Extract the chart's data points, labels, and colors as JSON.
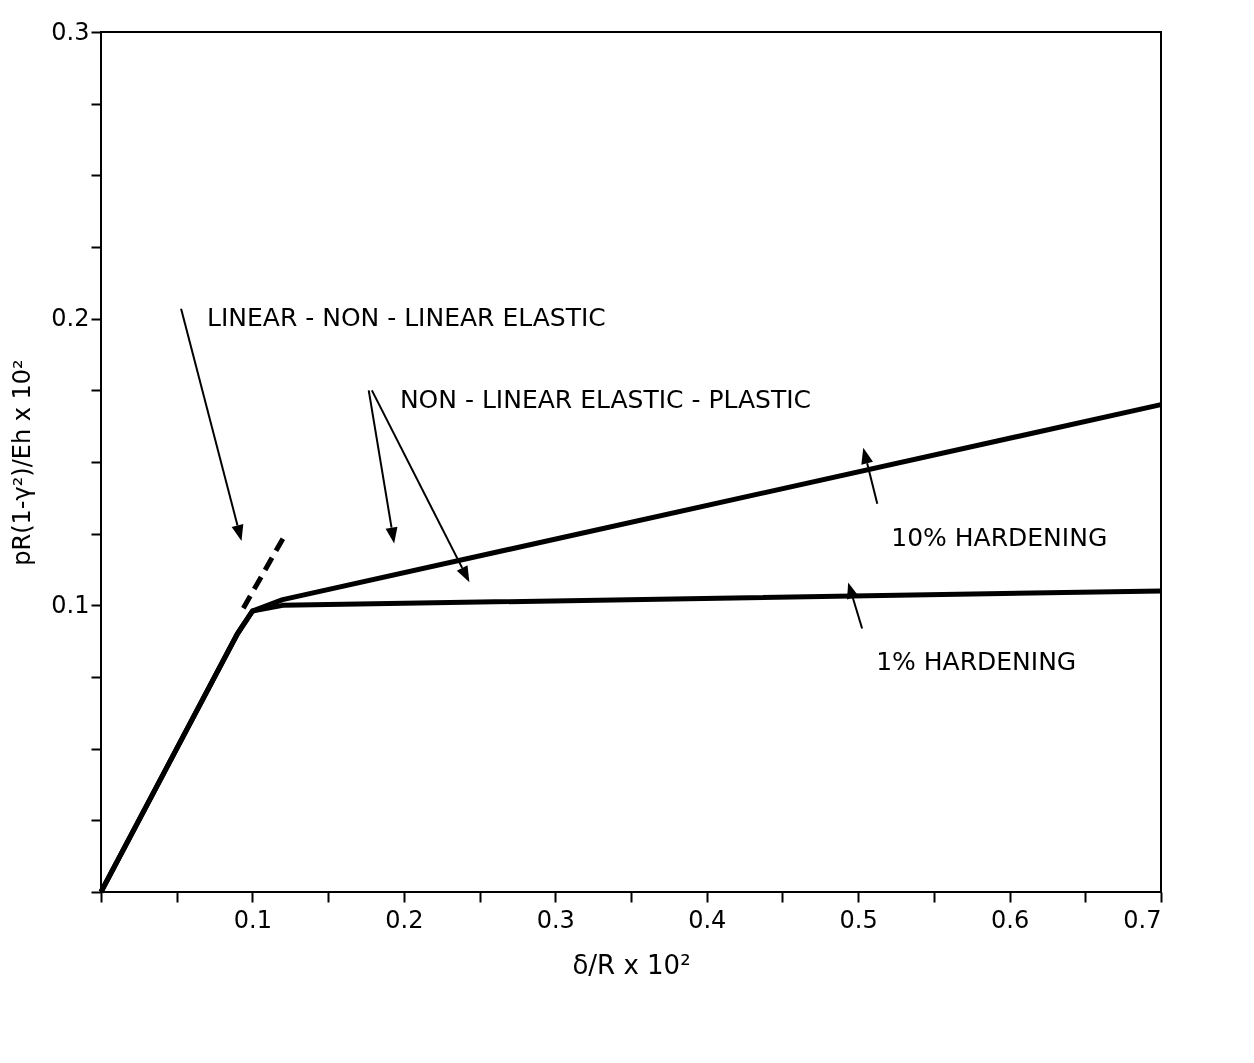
{
  "chart_data": {
    "type": "line",
    "xlabel": "δ/R x 10²",
    "ylabel": "pR(1-γ²)/Eh x 10²",
    "xlim": [
      0,
      0.7
    ],
    "ylim": [
      0,
      0.3
    ],
    "xticks": [
      {
        "value": 0,
        "label": null
      },
      {
        "value": 0.05,
        "label": null
      },
      0.1,
      {
        "value": 0.15,
        "label": null
      },
      0.2,
      {
        "value": 0.25,
        "label": null
      },
      0.3,
      {
        "value": 0.35,
        "label": null
      },
      0.4,
      {
        "value": 0.45,
        "label": null
      },
      0.5,
      {
        "value": 0.55,
        "label": null
      },
      0.6,
      {
        "value": 0.65,
        "label": null
      },
      0.7
    ],
    "yticks": [
      {
        "value": 0,
        "label": null
      },
      {
        "value": 0.025,
        "label": null
      },
      {
        "value": 0.05,
        "label": null
      },
      {
        "value": 0.075,
        "label": null
      },
      0.1,
      {
        "value": 0.125,
        "label": null
      },
      {
        "value": 0.15,
        "label": null
      },
      {
        "value": 0.175,
        "label": null
      },
      0.2,
      {
        "value": 0.225,
        "label": null
      },
      {
        "value": 0.25,
        "label": null
      },
      {
        "value": 0.275,
        "label": null
      },
      0.3
    ],
    "grid": false,
    "line_style": "solid",
    "series": [
      {
        "color": "#000000",
        "x": [
          0,
          0.09,
          0.1,
          0.12,
          0.7
        ],
        "values": [
          0,
          0.09,
          0.098,
          0.102,
          0.17
        ]
      },
      {
        "color": "#000000",
        "x": [
          0,
          0.09,
          0.1,
          0.12,
          0.7
        ],
        "values": [
          0,
          0.09,
          0.098,
          0.1,
          0.105
        ]
      },
      {
        "color": "#000000",
        "line_style": "dashed",
        "x": [
          0.094,
          0.122
        ],
        "values": [
          0.099,
          0.125
        ]
      }
    ],
    "annotations": [
      "LINEAR - NON - LINEAR ELASTIC",
      "NON - LINEAR ELASTIC - PLASTIC",
      {
        "text": "10% HARDENING",
        "x": 0.51,
        "y": 0.148
      },
      {
        "text": "1% HARDENING",
        "x": 0.5,
        "y": 0.101
      }
    ]
  }
}
